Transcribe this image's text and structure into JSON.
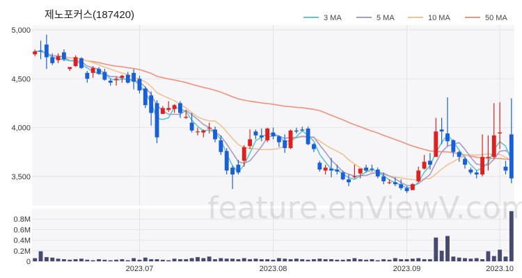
{
  "chart_data": {
    "type": "candlestick",
    "title": "제노포커스(187420)",
    "watermark": "feature.enViewV.com",
    "price_ylim": [
      3200,
      5050
    ],
    "price_ticks": [
      {
        "value": 5000,
        "label": "5,000"
      },
      {
        "value": 4500,
        "label": "4,500"
      },
      {
        "value": 4000,
        "label": "4,000"
      },
      {
        "value": 3500,
        "label": "3,500"
      }
    ],
    "volume_ylim": [
      0,
      1000000
    ],
    "volume_ticks": [
      {
        "value": 800000,
        "label": "0.8M"
      },
      {
        "value": 600000,
        "label": "0.6M"
      },
      {
        "value": 400000,
        "label": "0.4M"
      },
      {
        "value": 200000,
        "label": "0.2M"
      },
      {
        "value": 0,
        "label": "0"
      }
    ],
    "x_ticks": [
      {
        "index": 18,
        "label": "2023.07"
      },
      {
        "index": 41,
        "label": "2023.08"
      },
      {
        "index": 64,
        "label": "2023.09"
      },
      {
        "index": 80,
        "label": "2023.10"
      }
    ],
    "legend": [
      {
        "name": "3 MA",
        "color": "#5bc8c8"
      },
      {
        "name": "5 MA",
        "color": "#a89ac8"
      },
      {
        "name": "10 MA",
        "color": "#f2c28e"
      },
      {
        "name": "50 MA",
        "color": "#f2917a"
      }
    ],
    "up_color": "#e02020",
    "down_color": "#1b5fd6",
    "volume_color": "#454a6e",
    "ohlc": [
      [
        4750,
        4800,
        4730,
        4780
      ],
      [
        4790,
        4890,
        4700,
        4780
      ],
      [
        4850,
        4950,
        4600,
        4720
      ],
      [
        4720,
        4760,
        4640,
        4660
      ],
      [
        4690,
        4760,
        4660,
        4730
      ],
      [
        4770,
        4800,
        4680,
        4700
      ],
      [
        4600,
        4620,
        4580,
        4620
      ],
      [
        4630,
        4740,
        4620,
        4720
      ],
      [
        4710,
        4720,
        4600,
        4610
      ],
      [
        4560,
        4580,
        4460,
        4500
      ],
      [
        4560,
        4630,
        4510,
        4610
      ],
      [
        4600,
        4620,
        4540,
        4550
      ],
      [
        4570,
        4600,
        4480,
        4490
      ],
      [
        4480,
        4500,
        4430,
        4460
      ],
      [
        4490,
        4520,
        4430,
        4500
      ],
      [
        4510,
        4540,
        4460,
        4530
      ],
      [
        4540,
        4570,
        4450,
        4460
      ],
      [
        4560,
        4600,
        4390,
        4470
      ],
      [
        4500,
        4530,
        4350,
        4380
      ],
      [
        4400,
        4420,
        4200,
        4230
      ],
      [
        4330,
        4370,
        4020,
        4150
      ],
      [
        4250,
        4280,
        3840,
        3900
      ],
      [
        4140,
        4220,
        4140,
        4200
      ],
      [
        4180,
        4270,
        4160,
        4200
      ],
      [
        4190,
        4240,
        4150,
        4230
      ],
      [
        4250,
        4270,
        4100,
        4150
      ],
      [
        4100,
        4180,
        4090,
        4110
      ],
      [
        4050,
        4150,
        3950,
        3970
      ],
      [
        3960,
        4000,
        3920,
        3960
      ],
      [
        3950,
        3980,
        3900,
        3970
      ],
      [
        3990,
        4050,
        3940,
        4000
      ],
      [
        3980,
        4010,
        3850,
        3880
      ],
      [
        3870,
        3920,
        3720,
        3750
      ],
      [
        3760,
        3790,
        3520,
        3560
      ],
      [
        3590,
        3610,
        3370,
        3520
      ],
      [
        3620,
        3670,
        3520,
        3540
      ],
      [
        3660,
        3820,
        3600,
        3800
      ],
      [
        3810,
        3980,
        3780,
        3880
      ],
      [
        3960,
        3980,
        3880,
        3920
      ],
      [
        3920,
        3990,
        3860,
        3900
      ],
      [
        3870,
        4000,
        3850,
        3990
      ],
      [
        3950,
        4000,
        3880,
        3910
      ],
      [
        3910,
        3920,
        3800,
        3850
      ],
      [
        3870,
        3930,
        3740,
        3790
      ],
      [
        3790,
        3980,
        3780,
        3970
      ],
      [
        3970,
        4000,
        3940,
        3960
      ],
      [
        3980,
        4010,
        3960,
        3970
      ],
      [
        3990,
        4010,
        3820,
        3830
      ],
      [
        3830,
        3840,
        3750,
        3780
      ],
      [
        3640,
        3660,
        3550,
        3570
      ],
      [
        3560,
        3620,
        3520,
        3590
      ],
      [
        3580,
        3690,
        3490,
        3560
      ],
      [
        3570,
        3620,
        3520,
        3550
      ],
      [
        3540,
        3560,
        3460,
        3470
      ],
      [
        3470,
        3520,
        3400,
        3440
      ],
      [
        3500,
        3620,
        3480,
        3500
      ],
      [
        3530,
        3580,
        3480,
        3580
      ],
      [
        3590,
        3620,
        3540,
        3560
      ],
      [
        3580,
        3620,
        3550,
        3570
      ],
      [
        3570,
        3590,
        3480,
        3500
      ],
      [
        3500,
        3540,
        3420,
        3450
      ],
      [
        3440,
        3470,
        3420,
        3440
      ],
      [
        3440,
        3490,
        3400,
        3420
      ],
      [
        3420,
        3470,
        3360,
        3380
      ],
      [
        3380,
        3400,
        3330,
        3350
      ],
      [
        3360,
        3430,
        3360,
        3420
      ],
      [
        3450,
        3600,
        3440,
        3560
      ],
      [
        3580,
        3720,
        3570,
        3650
      ],
      [
        3660,
        3740,
        3570,
        3620
      ],
      [
        3700,
        4100,
        3700,
        3960
      ],
      [
        3980,
        4100,
        3830,
        3960
      ],
      [
        3940,
        4310,
        3810,
        3860
      ],
      [
        3870,
        3880,
        3700,
        3750
      ],
      [
        3750,
        3760,
        3650,
        3700
      ],
      [
        3680,
        3700,
        3580,
        3620
      ],
      [
        3570,
        3590,
        3520,
        3540
      ],
      [
        3540,
        3560,
        3480,
        3520
      ],
      [
        3520,
        3930,
        3500,
        3700
      ],
      [
        3690,
        3920,
        3560,
        3700
      ],
      [
        3700,
        4250,
        3680,
        3920
      ],
      [
        3940,
        4260,
        3780,
        3950
      ],
      [
        3600,
        3660,
        3520,
        3560
      ],
      [
        3930,
        4300,
        3430,
        3480
      ]
    ],
    "volume": [
      60000,
      190000,
      80000,
      70000,
      50000,
      40000,
      30000,
      40000,
      50000,
      30000,
      20000,
      40000,
      30000,
      20000,
      30000,
      40000,
      20000,
      60000,
      30000,
      70000,
      40000,
      40000,
      30000,
      20000,
      50000,
      40000,
      40000,
      60000,
      80000,
      60000,
      90000,
      40000,
      60000,
      50000,
      50000,
      40000,
      60000,
      40000,
      50000,
      40000,
      40000,
      30000,
      60000,
      50000,
      40000,
      50000,
      40000,
      30000,
      40000,
      50000,
      40000,
      40000,
      30000,
      30000,
      40000,
      60000,
      40000,
      30000,
      40000,
      20000,
      40000,
      30000,
      60000,
      40000,
      40000,
      50000,
      60000,
      40000,
      40000,
      450000,
      200000,
      480000,
      90000,
      70000,
      60000,
      50000,
      60000,
      40000,
      190000,
      100000,
      220000,
      90000,
      950000
    ]
  }
}
